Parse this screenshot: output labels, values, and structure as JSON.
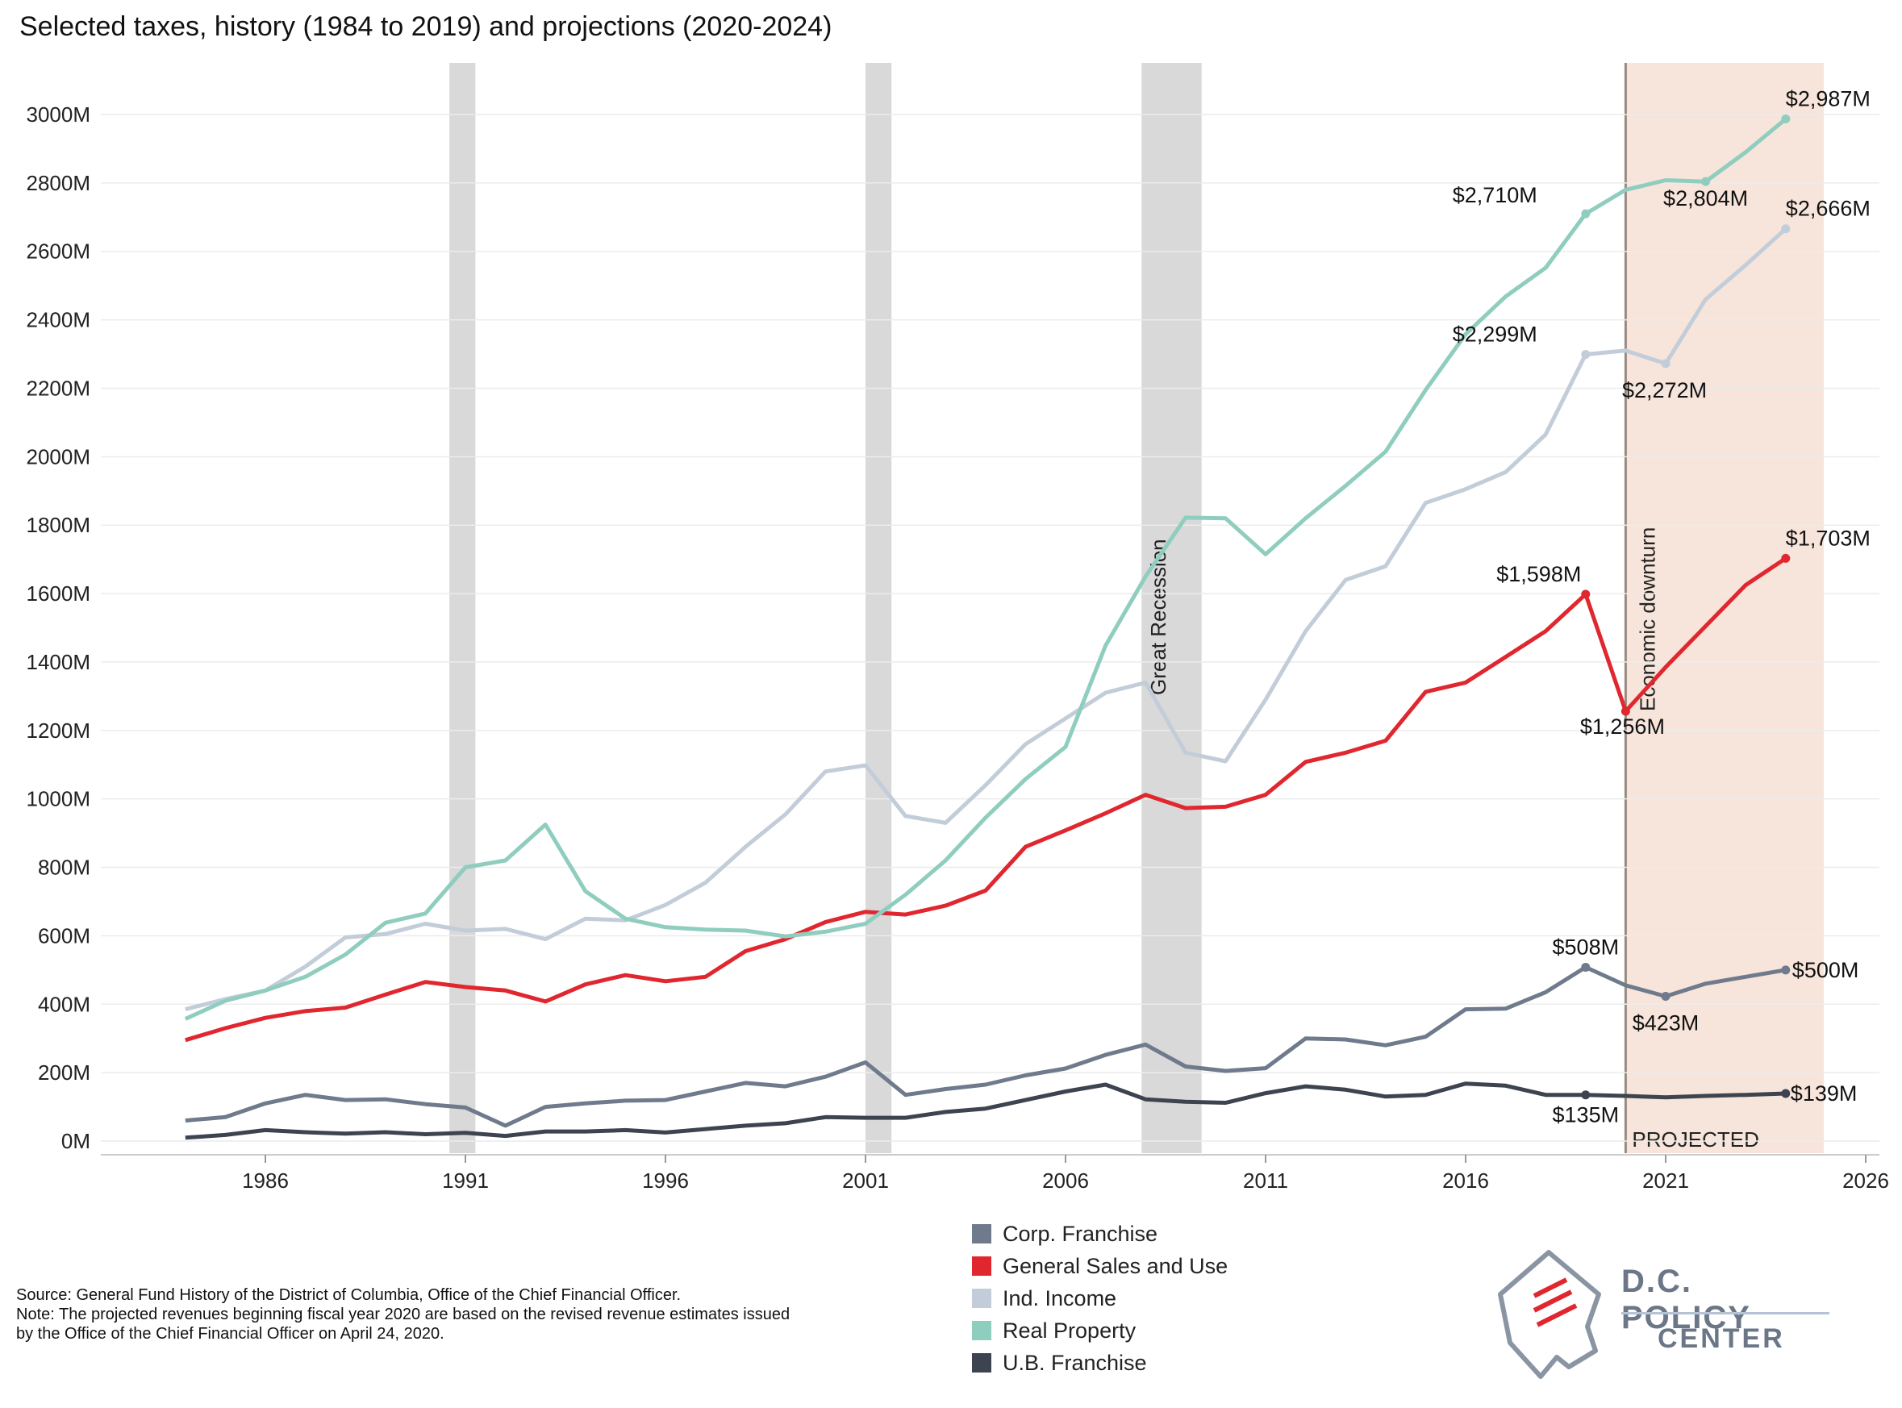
{
  "chart_data": {
    "type": "line",
    "title": "Selected taxes, history (1984 to 2019) and projections (2020-2024)",
    "xlabel": "",
    "ylabel": "",
    "xlim": [
      1982,
      2026
    ],
    "ylim": [
      0,
      3000
    ],
    "x_ticks": [
      1986,
      1991,
      1996,
      2001,
      2006,
      2011,
      2016,
      2021,
      2026
    ],
    "y_ticks": [
      {
        "value": 0,
        "label": "0M"
      },
      {
        "value": 200,
        "label": "200M"
      },
      {
        "value": 400,
        "label": "400M"
      },
      {
        "value": 600,
        "label": "600M"
      },
      {
        "value": 800,
        "label": "800M"
      },
      {
        "value": 1000,
        "label": "1000M"
      },
      {
        "value": 1200,
        "label": "1200M"
      },
      {
        "value": 1400,
        "label": "1400M"
      },
      {
        "value": 1600,
        "label": "1600M"
      },
      {
        "value": 1800,
        "label": "1800M"
      },
      {
        "value": 2000,
        "label": "2000M"
      },
      {
        "value": 2200,
        "label": "2200M"
      },
      {
        "value": 2400,
        "label": "2400M"
      },
      {
        "value": 2600,
        "label": "2600M"
      },
      {
        "value": 2800,
        "label": "2800M"
      },
      {
        "value": 3000,
        "label": "3000M"
      }
    ],
    "grid": true,
    "x": [
      1984,
      1985,
      1986,
      1987,
      1988,
      1989,
      1990,
      1991,
      1992,
      1993,
      1994,
      1995,
      1996,
      1997,
      1998,
      1999,
      2000,
      2001,
      2002,
      2003,
      2004,
      2005,
      2006,
      2007,
      2008,
      2009,
      2010,
      2011,
      2012,
      2013,
      2014,
      2015,
      2016,
      2017,
      2018,
      2019,
      2020,
      2021,
      2022,
      2023,
      2024
    ],
    "series": [
      {
        "name": "Corp. Franchise",
        "color": "#6f7b8c",
        "values": [
          60,
          70,
          110,
          135,
          120,
          122,
          108,
          98,
          45,
          100,
          110,
          118,
          120,
          145,
          170,
          160,
          188,
          230,
          135,
          152,
          165,
          192,
          212,
          252,
          282,
          218,
          205,
          213,
          300,
          297,
          280,
          305,
          385,
          387,
          435,
          508,
          455,
          423,
          460,
          480,
          500
        ]
      },
      {
        "name": "General Sales and Use",
        "color": "#e0272f",
        "values": [
          295,
          330,
          360,
          380,
          390,
          428,
          465,
          450,
          440,
          408,
          458,
          485,
          467,
          480,
          555,
          590,
          640,
          670,
          662,
          688,
          732,
          860,
          908,
          958,
          1012,
          973,
          977,
          1012,
          1108,
          1135,
          1170,
          1313,
          1340,
          1415,
          1490,
          1598,
          1256,
          1385,
          1505,
          1625,
          1703
        ]
      },
      {
        "name": "Ind. Income",
        "color": "#c3cdd9",
        "values": [
          385,
          415,
          440,
          510,
          595,
          605,
          635,
          615,
          620,
          590,
          650,
          645,
          690,
          755,
          860,
          955,
          1080,
          1098,
          950,
          930,
          1040,
          1160,
          1235,
          1310,
          1340,
          1135,
          1110,
          1290,
          1490,
          1640,
          1680,
          1865,
          1905,
          1955,
          2065,
          2299,
          2310,
          2272,
          2460,
          2560,
          2666
        ]
      },
      {
        "name": "Real Property",
        "color": "#8fcdbf",
        "values": [
          357,
          410,
          440,
          480,
          545,
          638,
          665,
          800,
          820,
          925,
          730,
          650,
          625,
          618,
          615,
          598,
          612,
          635,
          720,
          820,
          945,
          1058,
          1152,
          1448,
          1650,
          1822,
          1820,
          1715,
          1820,
          1915,
          2015,
          2195,
          2358,
          2468,
          2552,
          2710,
          2780,
          2808,
          2804,
          2890,
          2987
        ]
      },
      {
        "name": "U.B. Franchise",
        "color": "#3d4450",
        "values": [
          10,
          18,
          32,
          26,
          22,
          26,
          20,
          24,
          15,
          28,
          28,
          32,
          25,
          35,
          45,
          52,
          70,
          68,
          68,
          85,
          95,
          120,
          145,
          165,
          122,
          115,
          112,
          140,
          160,
          150,
          130,
          135,
          168,
          162,
          135,
          135,
          132,
          128,
          132,
          135,
          139
        ]
      }
    ],
    "point_labels": [
      {
        "series": "Real Property",
        "x": 2019,
        "text": "$2,710M"
      },
      {
        "series": "Real Property",
        "x": 2022,
        "text": "$2,804M"
      },
      {
        "series": "Real Property",
        "x": 2024,
        "text": "$2,987M"
      },
      {
        "series": "Ind. Income",
        "x": 2019,
        "text": "$2,299M"
      },
      {
        "series": "Ind. Income",
        "x": 2021,
        "text": "$2,272M"
      },
      {
        "series": "Ind. Income",
        "x": 2024,
        "text": "$2,666M"
      },
      {
        "series": "General Sales and Use",
        "x": 2019,
        "text": "$1,598M"
      },
      {
        "series": "General Sales and Use",
        "x": 2020,
        "text": "$1,256M"
      },
      {
        "series": "General Sales and Use",
        "x": 2024,
        "text": "$1,703M"
      },
      {
        "series": "Corp. Franchise",
        "x": 2019,
        "text": "$508M"
      },
      {
        "series": "Corp. Franchise",
        "x": 2021,
        "text": "$423M"
      },
      {
        "series": "Corp. Franchise",
        "x": 2024,
        "text": "$500M"
      },
      {
        "series": "U.B. Franchise",
        "x": 2019,
        "text": "$135M"
      },
      {
        "series": "U.B. Franchise",
        "x": 2024,
        "text": "$139M"
      }
    ],
    "recession_bands": [
      {
        "start": 1990.6,
        "end": 1991.25
      },
      {
        "start": 2001.0,
        "end": 2001.65
      },
      {
        "start": 2007.9,
        "end": 2009.4,
        "label": "Great Recession"
      }
    ],
    "projection": {
      "start": 2020.0,
      "end": 2024.95,
      "label": "PROJECTED",
      "line_label": "Economic downturn"
    },
    "legend_position": "bottom-center"
  },
  "footer": {
    "source": "Source: General Fund History of the District of Columbia, Office of the Chief Financial Officer.",
    "note_line1": "Note: The projected revenues beginning fiscal year 2020 are based on the revised revenue estimates issued",
    "note_line2": "by the Office of the Chief Financial Officer on April 24, 2020."
  },
  "logo": {
    "line1": "D.C. POLICY",
    "line2": "CENTER",
    "colors": {
      "text": "#6b7787",
      "accent": "#e0272f"
    }
  }
}
